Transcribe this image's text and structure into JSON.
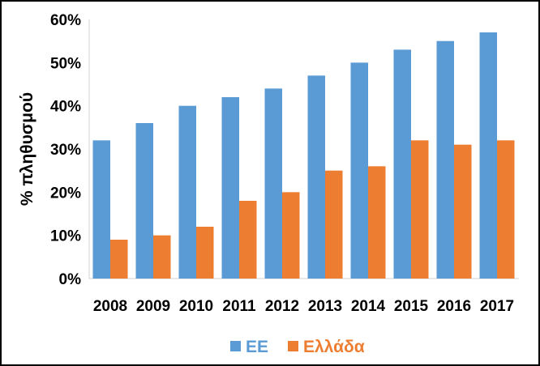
{
  "chart_data": {
    "type": "bar",
    "categories": [
      "2008",
      "2009",
      "2010",
      "2011",
      "2012",
      "2013",
      "2014",
      "2015",
      "2016",
      "2017"
    ],
    "series": [
      {
        "name": "ΕΕ",
        "color": "#5b9bd5",
        "values": [
          32,
          36,
          40,
          42,
          44,
          47,
          50,
          53,
          55,
          57
        ]
      },
      {
        "name": "Ελλάδα",
        "color": "#ed7d31",
        "values": [
          9,
          10,
          12,
          18,
          20,
          25,
          26,
          32,
          31,
          32
        ]
      }
    ],
    "ylabel": "% πληθυσμού",
    "xlabel": "",
    "ylim": [
      0,
      60
    ],
    "yticks": [
      "0%",
      "10%",
      "20%",
      "30%",
      "40%",
      "50%",
      "60%"
    ],
    "ytick_values": [
      0,
      10,
      20,
      30,
      40,
      50,
      60
    ],
    "grid": false,
    "legend_position": "bottom"
  }
}
